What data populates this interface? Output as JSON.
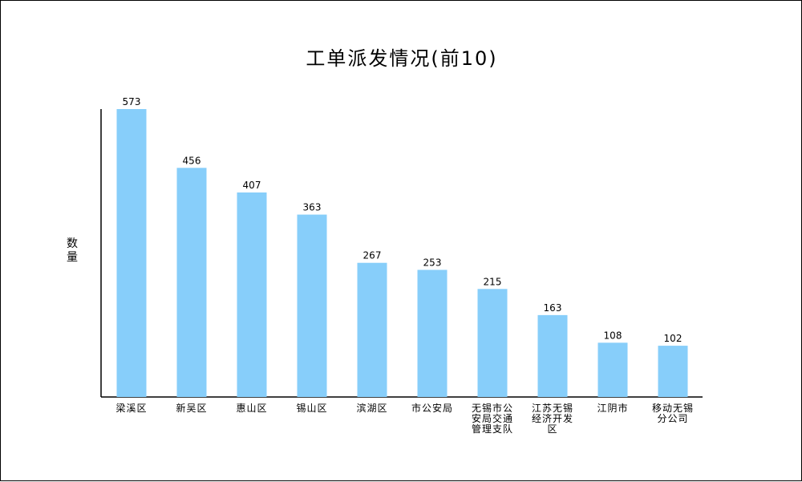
{
  "chart_data": {
    "type": "bar",
    "title": "工单派发情况(前10)",
    "ylabel": "数量",
    "xlabel": "",
    "ylim": [
      0,
      600
    ],
    "bar_color": "#87cefa",
    "categories": [
      {
        "label": "梁溪区",
        "lines": [
          "梁溪区"
        ]
      },
      {
        "label": "新吴区",
        "lines": [
          "新吴区"
        ]
      },
      {
        "label": "惠山区",
        "lines": [
          "惠山区"
        ]
      },
      {
        "label": "锡山区",
        "lines": [
          "锡山区"
        ]
      },
      {
        "label": "滨湖区",
        "lines": [
          "滨湖区"
        ]
      },
      {
        "label": "市公安局",
        "lines": [
          "市公安局"
        ]
      },
      {
        "label": "无锡市公安局交通管理支队",
        "lines": [
          "无锡市公",
          "安局交通",
          "管理支队"
        ]
      },
      {
        "label": "江苏无锡经济开发区",
        "lines": [
          "江苏无锡",
          "经济开发",
          "区"
        ]
      },
      {
        "label": "江阴市",
        "lines": [
          "江阴市"
        ]
      },
      {
        "label": "移动无锡分公司",
        "lines": [
          "移动无锡",
          "分公司"
        ]
      }
    ],
    "values": [
      573,
      456,
      407,
      363,
      267,
      253,
      215,
      163,
      108,
      102
    ]
  }
}
